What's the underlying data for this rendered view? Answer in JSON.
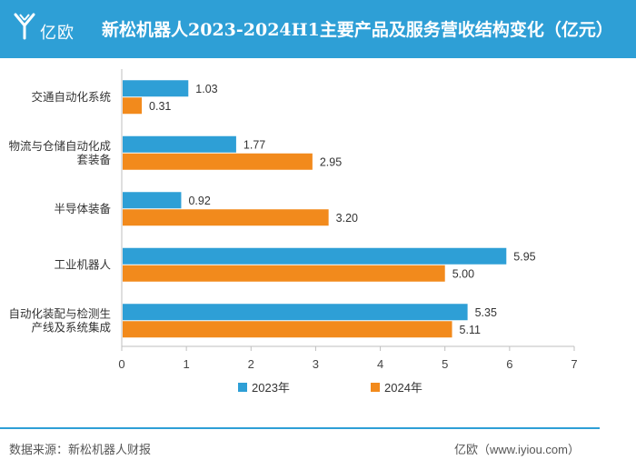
{
  "brand": {
    "logo_text": "亿欧"
  },
  "header": {
    "title": "新松机器人2023-2024H1主要产品及服务营收结构变化（亿元）"
  },
  "footer": {
    "source": "数据来源：新松机器人财报",
    "site": "亿欧（www.iyiou.com）"
  },
  "colors": {
    "header_bg": "#2e9fd6",
    "series_2023": "#2e9fd6",
    "series_2024": "#f28a1c"
  },
  "chart_data": {
    "type": "bar",
    "orientation": "horizontal",
    "title": "新松机器人2023-2024H1主要产品及服务营收结构变化（亿元）",
    "categories": [
      {
        "lines": [
          "交通自动化系统"
        ]
      },
      {
        "lines": [
          "物流与仓储自动化成",
          "套装备"
        ]
      },
      {
        "lines": [
          "半导体装备"
        ]
      },
      {
        "lines": [
          "工业机器人"
        ]
      },
      {
        "lines": [
          "自动化装配与检测生",
          "产线及系统集成"
        ]
      }
    ],
    "series": [
      {
        "name": "2023年",
        "color": "#2e9fd6",
        "values": [
          1.03,
          1.77,
          0.92,
          5.95,
          5.35
        ],
        "labels": [
          "1.03",
          "1.77",
          "0.92",
          "5.95",
          "5.35"
        ]
      },
      {
        "name": "2024年",
        "color": "#f28a1c",
        "values": [
          0.31,
          2.95,
          3.2,
          5.0,
          5.11
        ],
        "labels": [
          "0.31",
          "2.95",
          "3.20",
          "5.00",
          "5.11"
        ]
      }
    ],
    "xlim": [
      0,
      7
    ],
    "xticks": [
      "0",
      "1",
      "2",
      "3",
      "4",
      "5",
      "6",
      "7"
    ],
    "legend_position": "bottom",
    "grid": false
  }
}
